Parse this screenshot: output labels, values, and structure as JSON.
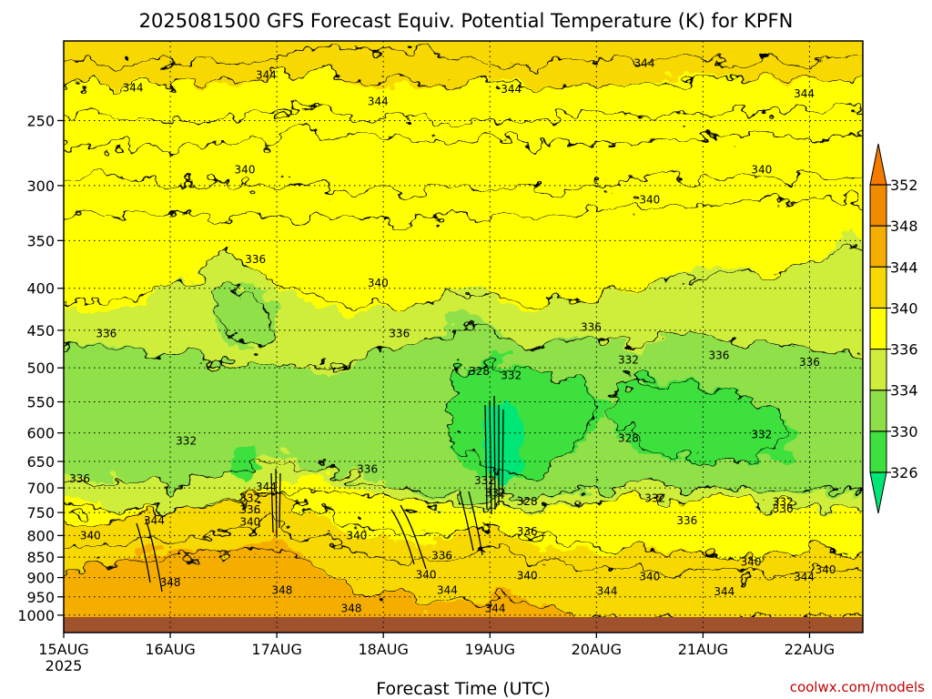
{
  "chart_data": {
    "type": "heatmap",
    "title": "2025081500 GFS Forecast Equiv. Potential Temperature (K) for KPFN",
    "xlabel": "Forecast Time (UTC)",
    "x_ticks": [
      "15AUG",
      "16AUG",
      "17AUG",
      "18AUG",
      "19AUG",
      "20AUG",
      "21AUG",
      "22AUG"
    ],
    "x_subtick": "2025",
    "ylabel": "",
    "y_ticks": [
      250,
      300,
      350,
      400,
      450,
      500,
      550,
      600,
      650,
      700,
      750,
      800,
      850,
      900,
      950,
      1000
    ],
    "y_scale": "log",
    "y_range_hPa": [
      200,
      1050
    ],
    "x_range_days": [
      0,
      7.5
    ],
    "grid": true,
    "colorbar": {
      "levels": [
        326,
        330,
        334,
        336,
        340,
        344,
        348,
        352
      ],
      "colors": [
        "#00e676",
        "#3ee03e",
        "#8fe048",
        "#cfee3a",
        "#ffff00",
        "#f7d800",
        "#f5ae00",
        "#f08a00",
        "#f47a00"
      ],
      "extend": "both",
      "placement": "right"
    },
    "ground_color": "#a0522d",
    "contour_labels": [
      {
        "t": 0.65,
        "p": 228,
        "v": "344"
      },
      {
        "t": 1.9,
        "p": 220,
        "v": "344"
      },
      {
        "t": 2.95,
        "p": 237,
        "v": "344"
      },
      {
        "t": 4.2,
        "p": 229,
        "v": "344"
      },
      {
        "t": 5.45,
        "p": 213,
        "v": "344"
      },
      {
        "t": 6.95,
        "p": 232,
        "v": "344"
      },
      {
        "t": 1.7,
        "p": 287,
        "v": "340"
      },
      {
        "t": 5.5,
        "p": 312,
        "v": "340"
      },
      {
        "t": 6.55,
        "p": 287,
        "v": "340"
      },
      {
        "t": 2.95,
        "p": 394,
        "v": "340"
      },
      {
        "t": 1.8,
        "p": 369,
        "v": "336"
      },
      {
        "t": 0.4,
        "p": 454,
        "v": "336"
      },
      {
        "t": 3.15,
        "p": 454,
        "v": "336"
      },
      {
        "t": 4.95,
        "p": 446,
        "v": "336"
      },
      {
        "t": 6.15,
        "p": 483,
        "v": "336"
      },
      {
        "t": 7.0,
        "p": 492,
        "v": "336"
      },
      {
        "t": 0.15,
        "p": 682,
        "v": "336"
      },
      {
        "t": 2.85,
        "p": 664,
        "v": "336"
      },
      {
        "t": 1.15,
        "p": 614,
        "v": "332"
      },
      {
        "t": 3.95,
        "p": 686,
        "v": "332"
      },
      {
        "t": 3.9,
        "p": 505,
        "v": "328"
      },
      {
        "t": 4.2,
        "p": 511,
        "v": "332"
      },
      {
        "t": 5.3,
        "p": 489,
        "v": "332"
      },
      {
        "t": 5.3,
        "p": 609,
        "v": "328"
      },
      {
        "t": 6.55,
        "p": 603,
        "v": "332"
      },
      {
        "t": 4.05,
        "p": 710,
        "v": "332"
      },
      {
        "t": 4.35,
        "p": 727,
        "v": "328"
      },
      {
        "t": 1.9,
        "p": 698,
        "v": "344"
      },
      {
        "t": 1.75,
        "p": 721,
        "v": "332"
      },
      {
        "t": 1.75,
        "p": 744,
        "v": "336"
      },
      {
        "t": 1.75,
        "p": 770,
        "v": "340"
      },
      {
        "t": 0.85,
        "p": 767,
        "v": "344"
      },
      {
        "t": 0.25,
        "p": 800,
        "v": "340"
      },
      {
        "t": 2.75,
        "p": 800,
        "v": "340"
      },
      {
        "t": 3.55,
        "p": 846,
        "v": "336"
      },
      {
        "t": 4.35,
        "p": 791,
        "v": "336"
      },
      {
        "t": 5.55,
        "p": 721,
        "v": "332"
      },
      {
        "t": 5.85,
        "p": 767,
        "v": "336"
      },
      {
        "t": 6.75,
        "p": 728,
        "v": "332"
      },
      {
        "t": 6.75,
        "p": 742,
        "v": "336"
      },
      {
        "t": 6.45,
        "p": 862,
        "v": "340"
      },
      {
        "t": 7.15,
        "p": 880,
        "v": "340"
      },
      {
        "t": 3.4,
        "p": 893,
        "v": "340"
      },
      {
        "t": 3.6,
        "p": 933,
        "v": "344"
      },
      {
        "t": 4.35,
        "p": 895,
        "v": "340"
      },
      {
        "t": 5.1,
        "p": 935,
        "v": "344"
      },
      {
        "t": 5.5,
        "p": 897,
        "v": "340"
      },
      {
        "t": 6.2,
        "p": 936,
        "v": "344"
      },
      {
        "t": 6.95,
        "p": 899,
        "v": "344"
      },
      {
        "t": 1.0,
        "p": 913,
        "v": "348"
      },
      {
        "t": 2.05,
        "p": 933,
        "v": "348"
      },
      {
        "t": 2.7,
        "p": 981,
        "v": "348"
      },
      {
        "t": 4.05,
        "p": 981,
        "v": "344"
      }
    ]
  },
  "credit": "coolwx.com/models"
}
